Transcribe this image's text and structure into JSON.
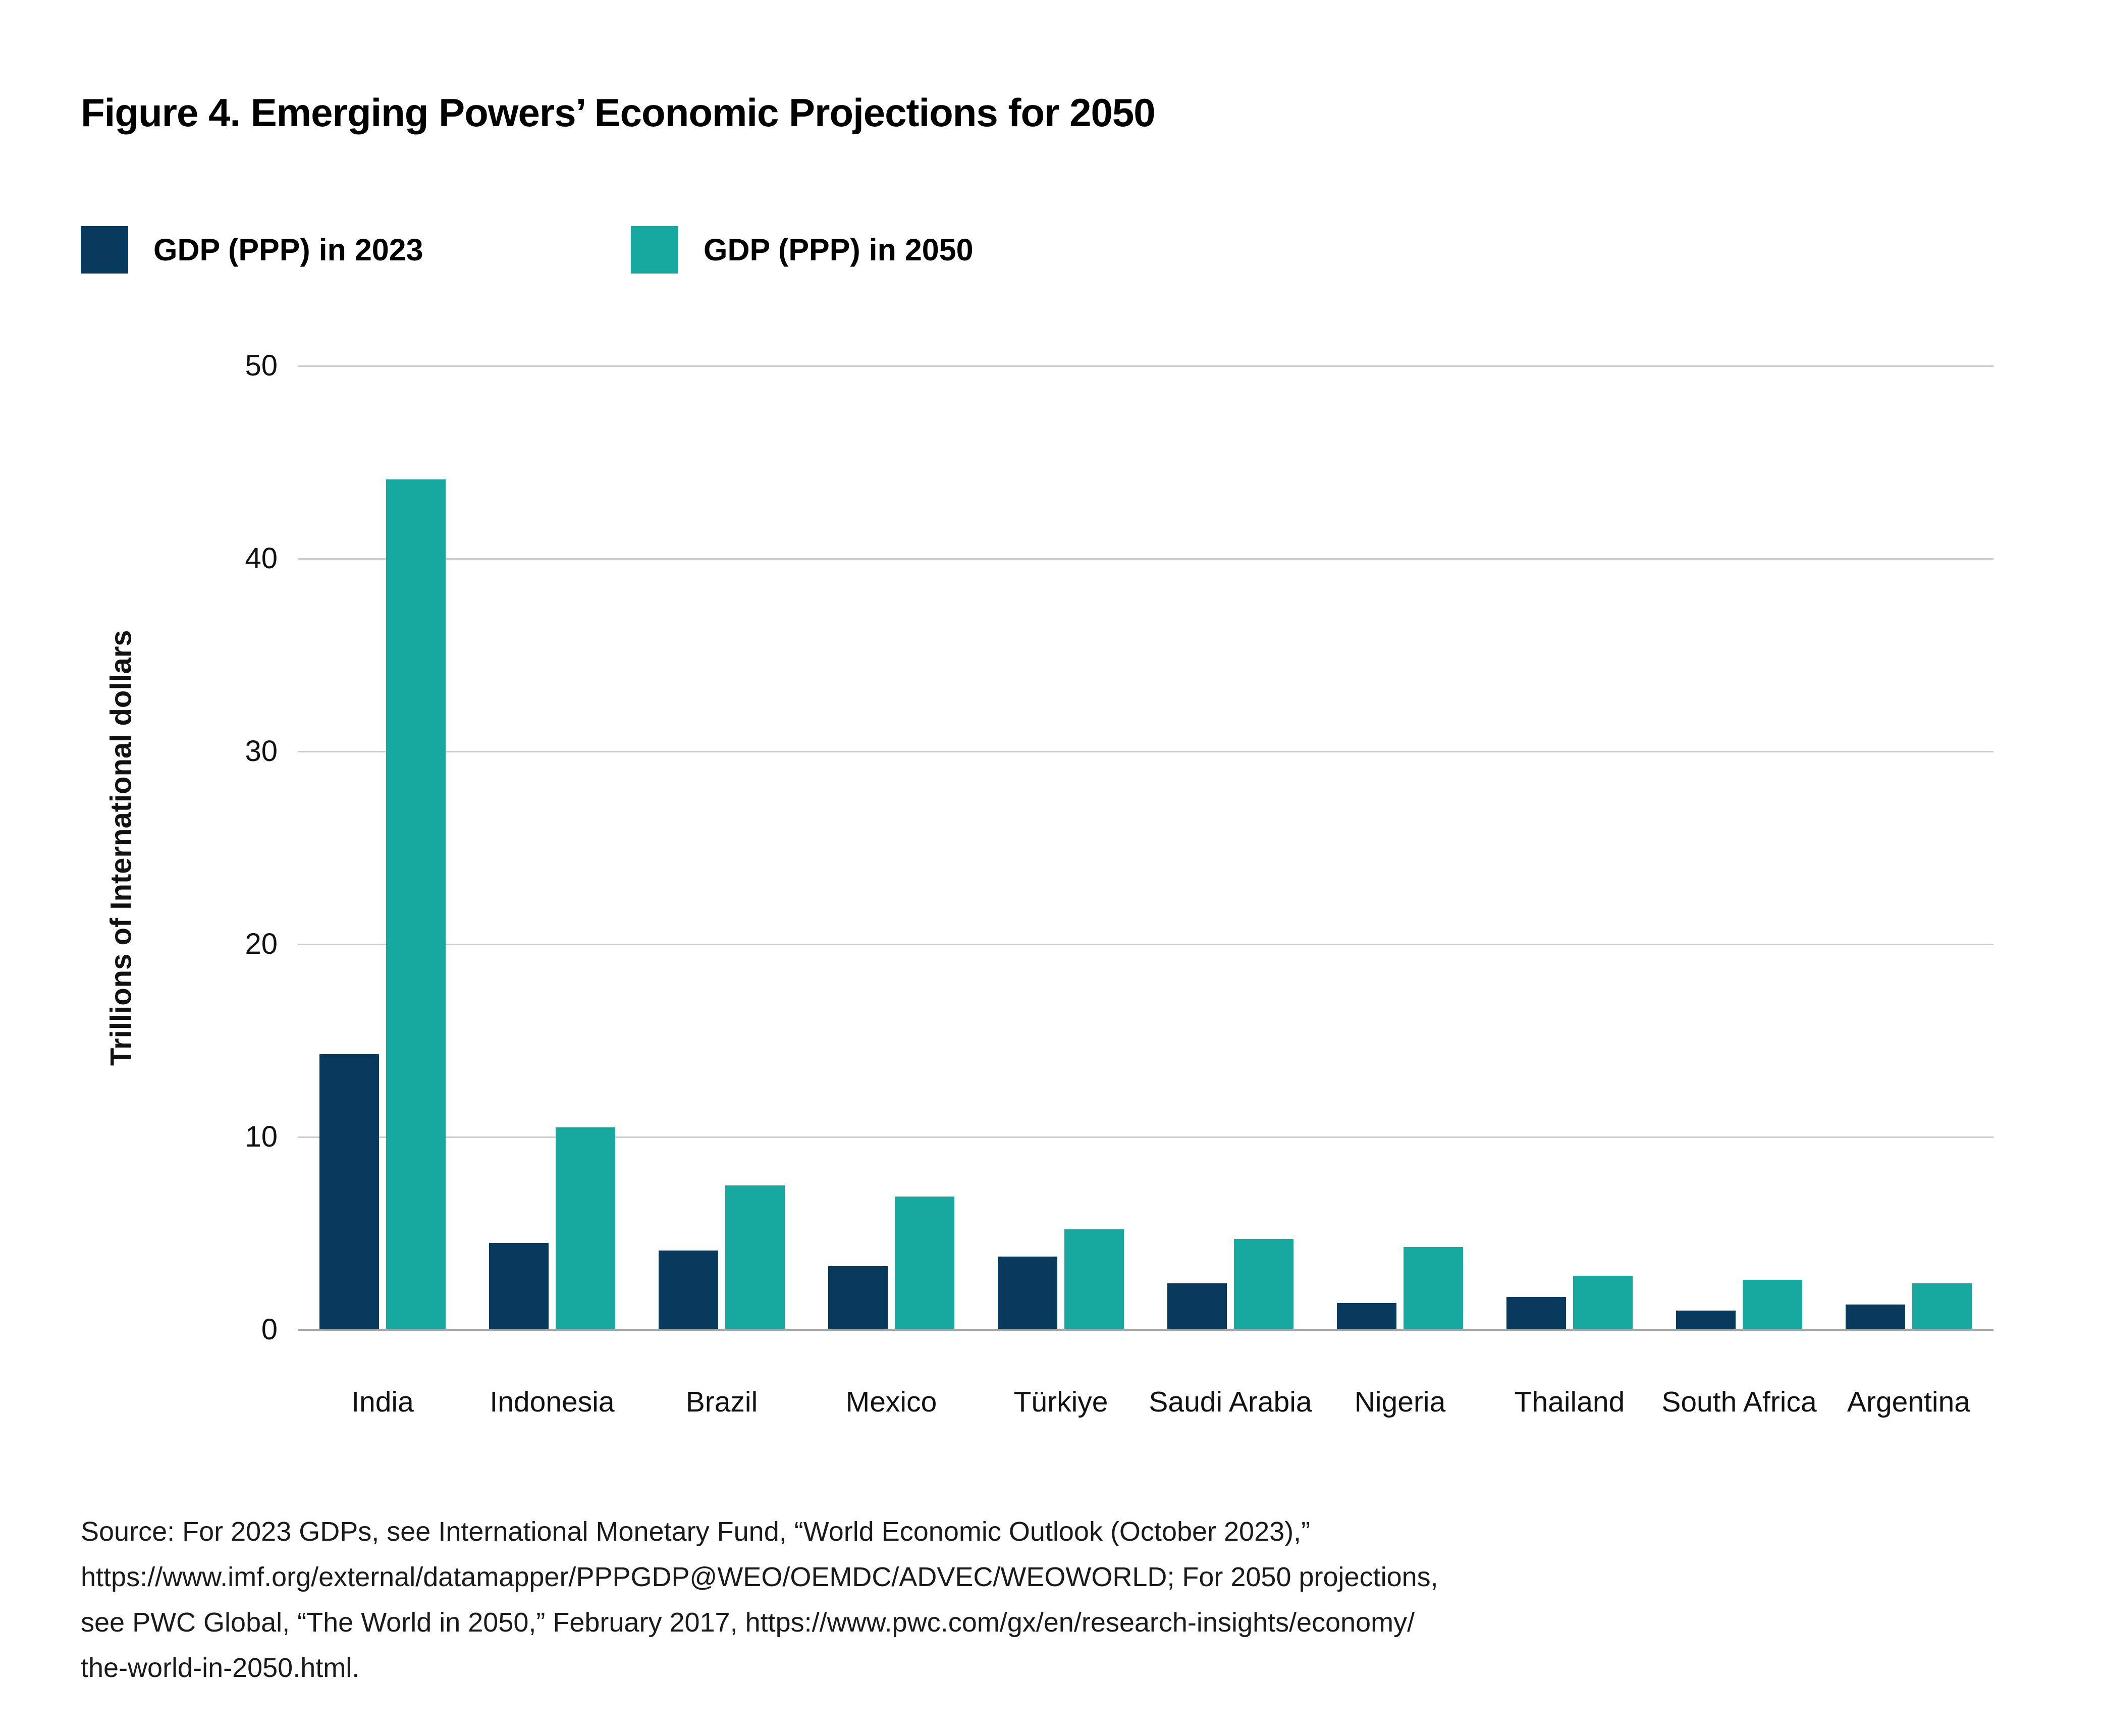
{
  "figure": {
    "title": "Figure 4. Emerging Powers’ Economic Projections for 2050",
    "source_lines": [
      "Source: For 2023 GDPs, see International Monetary Fund, “World Economic Outlook (October 2023),”",
      "https://www.imf.org/external/datamapper/PPPGDP@WEO/OEMDC/ADVEC/WEOWORLD; For 2050 projections,",
      "see PWC Global, “The World in 2050,” February 2017, https://www.pwc.com/gx/en/research-insights/economy/",
      "the-world-in-2050.html."
    ]
  },
  "legend": [
    {
      "label": "GDP (PPP) in 2023",
      "color": "#083a5e"
    },
    {
      "label": "GDP (PPP) in 2050",
      "color": "#16a89e"
    }
  ],
  "colors": {
    "navy_2023": "#083a5e",
    "teal_2050": "#16a89e",
    "gridline": "#c9cccb",
    "axis_line": "#a3a6a5",
    "background": "#ffffff",
    "text": "#000000"
  },
  "chart_data": {
    "type": "bar",
    "title": "Figure 4. Emerging Powers’ Economic Projections for 2050",
    "categories": [
      "India",
      "Indonesia",
      "Brazil",
      "Mexico",
      "Türkiye",
      "Saudi Arabia",
      "Nigeria",
      "Thailand",
      "South Africa",
      "Argentina"
    ],
    "series": [
      {
        "name": "GDP (PPP) in 2023",
        "color": "#083a5e",
        "values": [
          14.3,
          4.5,
          4.1,
          3.3,
          3.8,
          2.4,
          1.4,
          1.7,
          1.0,
          1.3
        ]
      },
      {
        "name": "GDP (PPP) in 2050",
        "color": "#16a89e",
        "values": [
          44.1,
          10.5,
          7.5,
          6.9,
          5.2,
          4.7,
          4.3,
          2.8,
          2.6,
          2.4
        ]
      }
    ],
    "xlabel": "",
    "ylabel": "Trillions of International dollars",
    "ylim": [
      0,
      50
    ],
    "yticks": [
      0,
      10,
      20,
      30,
      40,
      50
    ],
    "grid": "horizontal gridlines at each ytick",
    "legend_position": "top-left above plot",
    "units": "trillions of international dollars"
  }
}
